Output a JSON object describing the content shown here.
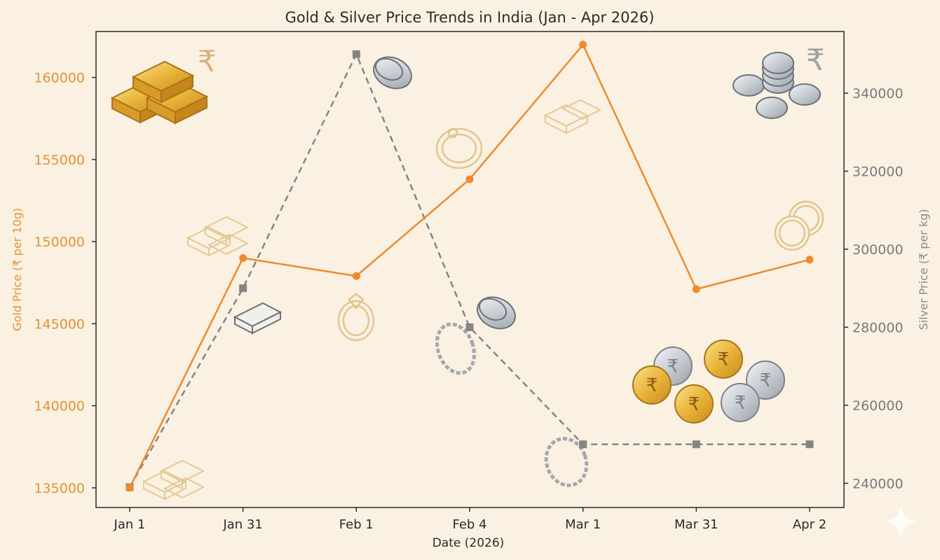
{
  "chart_data": {
    "type": "line",
    "title": "Gold & Silver Price Trends in India (Jan - Apr 2026)",
    "xlabel": "Date (2026)",
    "categories": [
      "Jan 1",
      "Jan 31",
      "Feb 1",
      "Feb 4",
      "Mar 1",
      "Mar 31",
      "Apr 2"
    ],
    "series": [
      {
        "axis": "left",
        "color": "#ef8a2e",
        "line_style": "solid",
        "marker": "circle",
        "values": [
          135000,
          149000,
          147900,
          153800,
          162000,
          147100,
          148900
        ]
      },
      {
        "axis": "right",
        "color": "#858585",
        "line_style": "dashed",
        "marker": "square",
        "values": [
          239000,
          290000,
          350000,
          280000,
          250000,
          250000,
          250000
        ]
      }
    ],
    "y_left": {
      "label": "Gold Price (₹ per 10g)",
      "ylim": [
        133800,
        162800
      ],
      "ticks": [
        135000,
        140000,
        145000,
        150000,
        155000,
        160000
      ]
    },
    "y_right": {
      "label": "Silver Price (₹ per kg)",
      "ylim": [
        233800,
        355800
      ],
      "ticks": [
        240000,
        260000,
        280000,
        300000,
        320000,
        340000
      ]
    },
    "grid": false,
    "legend": "none"
  },
  "decorations": {
    "rupee_symbol": "₹",
    "icons": [
      "gold-bars-icon",
      "gold-bar-outline-icon",
      "silver-bar-icon",
      "gold-ring-icon",
      "silver-chain-icon",
      "silver-coin-icon",
      "silver-coin-stack-icon",
      "rupee-coin-pile-icon",
      "sparkle-icon"
    ],
    "colors": {
      "gold": "#e39234",
      "silver": "#8a8a8a",
      "background": "#faf1e2"
    }
  }
}
